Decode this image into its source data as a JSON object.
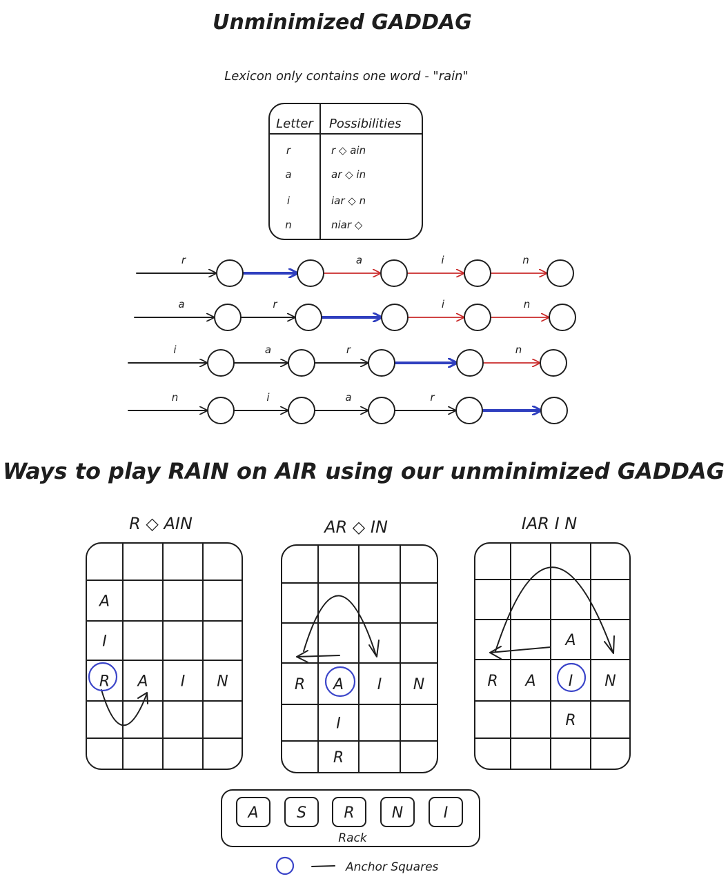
{
  "title": "Unminimized GADDAG",
  "subtitle": "Lexicon only contains one word - \"rain\"",
  "table": {
    "headers": [
      "Letter",
      "Possibilities"
    ],
    "rows": [
      {
        "letter": "r",
        "possibility": "r ◇ ain"
      },
      {
        "letter": "a",
        "possibility": "ar ◇ in"
      },
      {
        "letter": "i",
        "possibility": "iar ◇ n"
      },
      {
        "letter": "n",
        "possibility": "niar ◇"
      }
    ]
  },
  "paths": [
    {
      "labels": [
        "r",
        "",
        "a",
        "i",
        "n"
      ],
      "edge_types": [
        "black",
        "blue",
        "red",
        "red",
        "red"
      ]
    },
    {
      "labels": [
        "a",
        "r",
        "",
        "i",
        "n"
      ],
      "edge_types": [
        "black",
        "black",
        "blue",
        "red",
        "red"
      ]
    },
    {
      "labels": [
        "i",
        "a",
        "r",
        "",
        "n"
      ],
      "edge_types": [
        "black",
        "black",
        "black",
        "blue",
        "red"
      ]
    },
    {
      "labels": [
        "n",
        "i",
        "a",
        "r",
        ""
      ],
      "edge_types": [
        "black",
        "black",
        "black",
        "black",
        "blue"
      ]
    }
  ],
  "section_title": "Ways to play RAIN on AIR using our unminimized GADDAG",
  "boards": [
    {
      "title": "R ◇ AIN",
      "tiles": [
        {
          "letter": "A",
          "row": 1,
          "col": 0
        },
        {
          "letter": "I",
          "row": 2,
          "col": 0
        },
        {
          "letter": "R",
          "row": 3,
          "col": 0
        },
        {
          "letter": "A",
          "row": 3,
          "col": 1
        },
        {
          "letter": "I",
          "row": 3,
          "col": 2
        },
        {
          "letter": "N",
          "row": 3,
          "col": 3
        }
      ]
    },
    {
      "title": "AR ◇ IN",
      "tiles": [
        {
          "letter": "R",
          "row": 3,
          "col": 0
        },
        {
          "letter": "A",
          "row": 3,
          "col": 1
        },
        {
          "letter": "I",
          "row": 3,
          "col": 2
        },
        {
          "letter": "N",
          "row": 3,
          "col": 3
        },
        {
          "letter": "I",
          "row": 4,
          "col": 1
        },
        {
          "letter": "R",
          "row": 5,
          "col": 1
        }
      ]
    },
    {
      "title": "IAR I N",
      "tiles": [
        {
          "letter": "A",
          "row": 2,
          "col": 2
        },
        {
          "letter": "R",
          "row": 3,
          "col": 0
        },
        {
          "letter": "A",
          "row": 3,
          "col": 1
        },
        {
          "letter": "I",
          "row": 3,
          "col": 2
        },
        {
          "letter": "N",
          "row": 3,
          "col": 3
        },
        {
          "letter": "R",
          "row": 4,
          "col": 2
        }
      ]
    }
  ],
  "rack": {
    "tiles": [
      "A",
      "S",
      "R",
      "N",
      "I"
    ],
    "label": "Rack"
  },
  "legend": {
    "label": "Anchor Squares",
    "anchor_color": "#3b45c9"
  },
  "colors": {
    "blue_edge": "#2f3fbf",
    "red_edge": "#c92a2a",
    "ink": "#1e1e1e"
  }
}
